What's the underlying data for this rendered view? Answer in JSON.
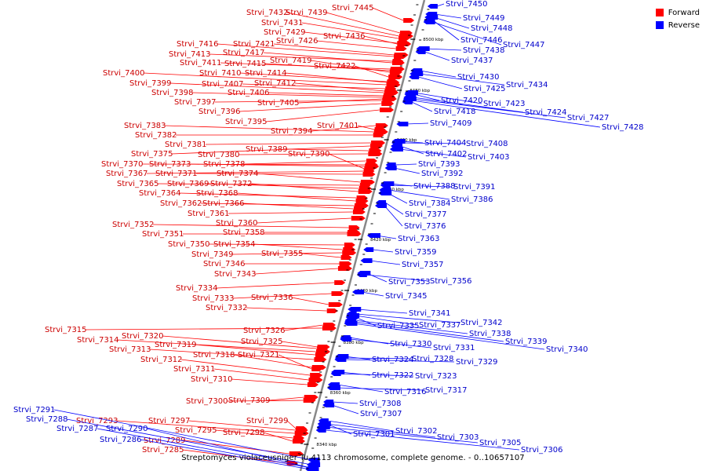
{
  "legend": [
    {
      "label": "Forward",
      "color": "#ff0000"
    },
    {
      "label": "Reverse",
      "color": "#0000ff"
    }
  ],
  "caption": "Streptomyces violaceusniger Tu 4113 chromosome, complete genome. - 0..10657107",
  "colors": {
    "forward": "#ff0000",
    "reverse": "#0000ff",
    "backbone": "#888888"
  },
  "kbp_labels": [
    "8500 kbp",
    "8480 kbp",
    "8460 kbp",
    "8440 kbp",
    "8420 kbp",
    "8400 kbp",
    "8380 kbp",
    "8360 kbp",
    "8340 kbp"
  ],
  "forward_labels": [
    "Strvi_7445",
    "Strvi_7439",
    "Strvi_7432",
    "Strvi_7431",
    "Strvi_7429",
    "Strvi_7436",
    "Strvi_7426",
    "Strvi_7416",
    "Strvi_7421",
    "Strvi_7413",
    "Strvi_7417",
    "Strvi_7411",
    "Strvi_7415",
    "Strvi_7419",
    "Strvi_7422",
    "Strvi_7410",
    "Strvi_7414",
    "Strvi_7400",
    "Strvi_7407",
    "Strvi_7412",
    "Strvi_7399",
    "Strvi_7406",
    "Strvi_7398",
    "Strvi_7405",
    "Strvi_7397",
    "Strvi_7396",
    "Strvi_7395",
    "Strvi_7401",
    "Strvi_7394",
    "Strvi_7383",
    "Strvi_7382",
    "Strvi_7389",
    "Strvi_7381",
    "Strvi_7390",
    "Strvi_7375",
    "Strvi_7380",
    "Strvi_7378",
    "Strvi_7370",
    "Strvi_7373",
    "Strvi_7367",
    "Strvi_7371",
    "Strvi_7374",
    "Strvi_7365",
    "Strvi_7369",
    "Strvi_7372",
    "Strvi_7364",
    "Strvi_7368",
    "Strvi_7362",
    "Strvi_7366",
    "Strvi_7361",
    "Strvi_7360",
    "Strvi_7352",
    "Strvi_7358",
    "Strvi_7351",
    "Strvi_7350",
    "Strvi_7354",
    "Strvi_7349",
    "Strvi_7355",
    "Strvi_7346",
    "Strvi_7343",
    "Strvi_7334",
    "Strvi_7333",
    "Strvi_7336",
    "Strvi_7332",
    "Strvi_7326",
    "Strvi_7315",
    "Strvi_7320",
    "Strvi_7325",
    "Strvi_7314",
    "Strvi_7319",
    "Strvi_7313",
    "Strvi_7318",
    "Strvi_7321",
    "Strvi_7312",
    "Strvi_7311",
    "Strvi_7310",
    "Strvi_7300",
    "Strvi_7309",
    "Strvi_7299",
    "Strvi_7297",
    "Strvi_7293",
    "Strvi_7295",
    "Strvi_7298",
    "Strvi_7289",
    "Strvi_7285"
  ],
  "reverse_labels": [
    "Strvi_7450",
    "Strvi_7449",
    "Strvi_7448",
    "Strvi_7446",
    "Strvi_7447",
    "Strvi_7438",
    "Strvi_7437",
    "Strvi_7430",
    "Strvi_7434",
    "Strvi_7425",
    "Strvi_7420",
    "Strvi_7423",
    "Strvi_7418",
    "Strvi_7424",
    "Strvi_7427",
    "Strvi_7428",
    "Strvi_7409",
    "Strvi_7404",
    "Strvi_7408",
    "Strvi_7402",
    "Strvi_7403",
    "Strvi_7393",
    "Strvi_7392",
    "Strvi_7388",
    "Strvi_7391",
    "Strvi_7386",
    "Strvi_7384",
    "Strvi_7377",
    "Strvi_7376",
    "Strvi_7363",
    "Strvi_7359",
    "Strvi_7357",
    "Strvi_7353",
    "Strvi_7356",
    "Strvi_7345",
    "Strvi_7341",
    "Strvi_7342",
    "Strvi_7335",
    "Strvi_7337",
    "Strvi_7338",
    "Strvi_7339",
    "Strvi_7340",
    "Strvi_7330",
    "Strvi_7331",
    "Strvi_7324",
    "Strvi_7328",
    "Strvi_7329",
    "Strvi_7322",
    "Strvi_7323",
    "Strvi_7316",
    "Strvi_7317",
    "Strvi_7308",
    "Strvi_7307",
    "Strvi_7301",
    "Strvi_7302",
    "Strvi_7303",
    "Strvi_7305",
    "Strvi_7306",
    "Strvi_7291",
    "Strvi_7288",
    "Strvi_7287",
    "Strvi_7290",
    "Strvi_7286"
  ]
}
